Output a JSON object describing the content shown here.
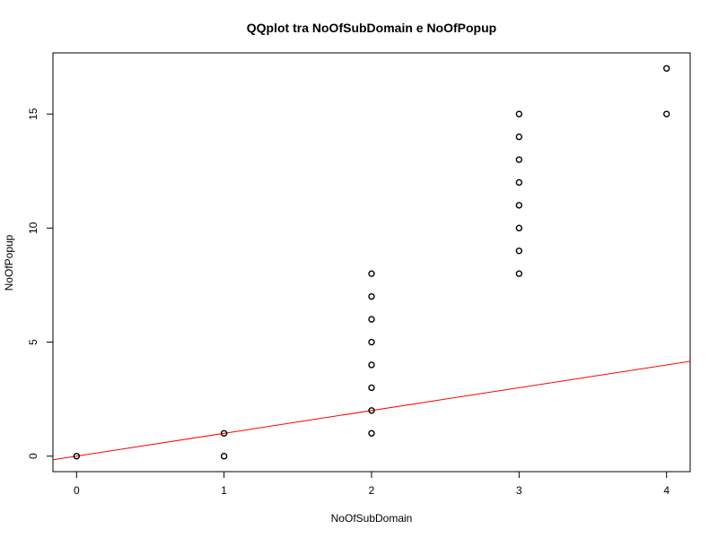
{
  "chart_data": {
    "type": "scatter",
    "title": "QQplot tra NoOfSubDomain e NoOfPopup",
    "xlabel": "NoOfSubDomain",
    "ylabel": "NoOfPopup",
    "xlim": [
      -0.16,
      4.16
    ],
    "ylim": [
      -0.68,
      17.68
    ],
    "x_ticks": [
      0,
      1,
      2,
      3,
      4
    ],
    "y_ticks": [
      0,
      5,
      10,
      15
    ],
    "grid": false,
    "legend": "none",
    "points": [
      {
        "x": 0,
        "y": 0
      },
      {
        "x": 1,
        "y": 0
      },
      {
        "x": 1,
        "y": 1
      },
      {
        "x": 2,
        "y": 1
      },
      {
        "x": 2,
        "y": 2
      },
      {
        "x": 2,
        "y": 3
      },
      {
        "x": 2,
        "y": 4
      },
      {
        "x": 2,
        "y": 5
      },
      {
        "x": 2,
        "y": 6
      },
      {
        "x": 2,
        "y": 7
      },
      {
        "x": 2,
        "y": 8
      },
      {
        "x": 3,
        "y": 8
      },
      {
        "x": 3,
        "y": 9
      },
      {
        "x": 3,
        "y": 10
      },
      {
        "x": 3,
        "y": 11
      },
      {
        "x": 3,
        "y": 12
      },
      {
        "x": 3,
        "y": 13
      },
      {
        "x": 3,
        "y": 14
      },
      {
        "x": 3,
        "y": 15
      },
      {
        "x": 4,
        "y": 15
      },
      {
        "x": 4,
        "y": 17
      }
    ],
    "reference_line": {
      "intercept": 0,
      "slope": 1,
      "color": "#ff0000"
    },
    "point_color": "#000000"
  }
}
